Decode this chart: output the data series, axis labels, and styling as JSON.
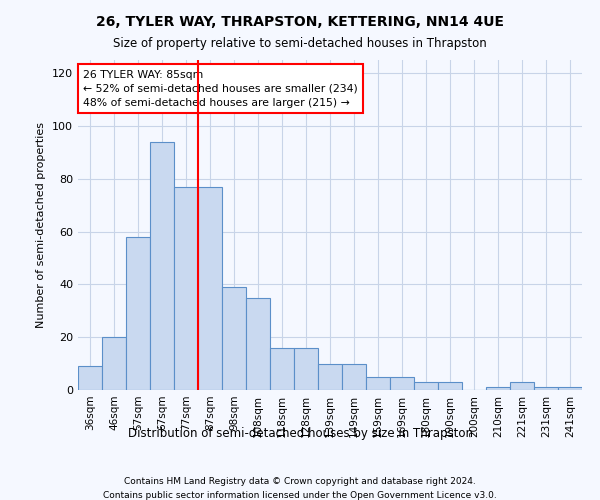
{
  "title": "26, TYLER WAY, THRAPSTON, KETTERING, NN14 4UE",
  "subtitle": "Size of property relative to semi-detached houses in Thrapston",
  "xlabel": "Distribution of semi-detached houses by size in Thrapston",
  "ylabel": "Number of semi-detached properties",
  "categories": [
    "36sqm",
    "46sqm",
    "57sqm",
    "67sqm",
    "77sqm",
    "87sqm",
    "98sqm",
    "108sqm",
    "118sqm",
    "128sqm",
    "139sqm",
    "149sqm",
    "159sqm",
    "169sqm",
    "180sqm",
    "190sqm",
    "200sqm",
    "210sqm",
    "221sqm",
    "231sqm",
    "241sqm"
  ],
  "values": [
    9,
    20,
    58,
    94,
    77,
    77,
    39,
    35,
    16,
    16,
    10,
    10,
    5,
    5,
    3,
    3,
    0,
    1,
    3,
    1,
    1
  ],
  "bar_color": "#c9d9f0",
  "bar_edge_color": "#5b8fc9",
  "annotation_title": "26 TYLER WAY: 85sqm",
  "annotation_line1": "← 52% of semi-detached houses are smaller (234)",
  "annotation_line2": "48% of semi-detached houses are larger (215) →",
  "ylim": [
    0,
    125
  ],
  "yticks": [
    0,
    20,
    40,
    60,
    80,
    100,
    120
  ],
  "footer1": "Contains HM Land Registry data © Crown copyright and database right 2024.",
  "footer2": "Contains public sector information licensed under the Open Government Licence v3.0.",
  "background_color": "#f5f8ff",
  "grid_color": "#c8d4e8"
}
